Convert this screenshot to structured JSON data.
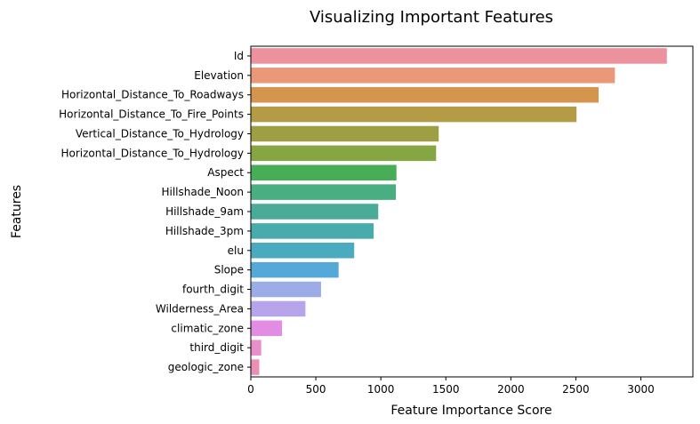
{
  "chart_data": {
    "type": "bar",
    "orientation": "horizontal",
    "title": "Visualizing Important Features",
    "xlabel": "Feature Importance Score",
    "ylabel": "Features",
    "xlim": [
      0,
      3400
    ],
    "xticks": [
      0,
      500,
      1000,
      1500,
      2000,
      2500,
      3000
    ],
    "grid": false,
    "categories": [
      "Id",
      "Elevation",
      "Horizontal_Distance_To_Roadways",
      "Horizontal_Distance_To_Fire_Points",
      "Vertical_Distance_To_Hydrology",
      "Horizontal_Distance_To_Hydrology",
      "Aspect",
      "Hillshade_Noon",
      "Hillshade_9am",
      "Hillshade_3pm",
      "elu",
      "Slope",
      "fourth_digit",
      "Wilderness_Area",
      "climatic_zone",
      "third_digit",
      "geologic_zone"
    ],
    "values": [
      3200,
      2800,
      2675,
      2505,
      1445,
      1425,
      1120,
      1115,
      980,
      945,
      795,
      675,
      540,
      420,
      240,
      80,
      65
    ],
    "colors": [
      "#ec929f",
      "#e99878",
      "#d6954c",
      "#b49c47",
      "#9e9e42",
      "#86a543",
      "#47ad57",
      "#49ae82",
      "#4aab98",
      "#4aabac",
      "#4aaac0",
      "#55a9d8",
      "#9cace6",
      "#b8a4ea",
      "#e28ce4",
      "#e88ecb",
      "#ea90b6"
    ]
  }
}
